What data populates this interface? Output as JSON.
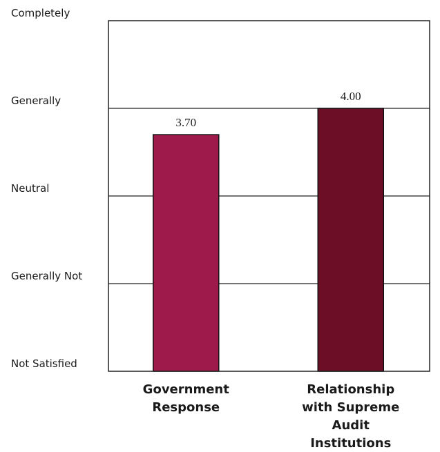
{
  "chart_data": {
    "type": "bar",
    "categories": [
      [
        "Government",
        "Response"
      ],
      [
        "Relationship",
        "with Supreme",
        "Audit",
        "Institutions"
      ]
    ],
    "values": [
      3.7,
      4.0
    ],
    "value_labels": [
      "3.70",
      "4.00"
    ],
    "bar_colors": [
      "#9e1a4a",
      "#6b0e26"
    ],
    "y_ticks": [
      {
        "value": 1,
        "label": "Not Satisfied"
      },
      {
        "value": 2,
        "label": "Generally Not"
      },
      {
        "value": 3,
        "label": "Neutral"
      },
      {
        "value": 4,
        "label": "Generally"
      },
      {
        "value": 5,
        "label": "Completely"
      }
    ],
    "ylim": [
      1,
      5
    ],
    "grid": true
  }
}
